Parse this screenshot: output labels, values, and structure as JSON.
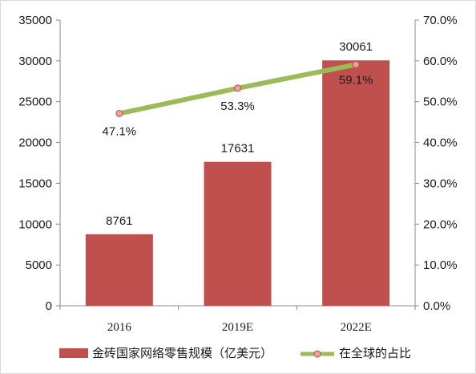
{
  "chart_data": {
    "type": "bar",
    "categories": [
      "2016",
      "2019E",
      "2022E"
    ],
    "series": [
      {
        "name": "金砖国家网络零售规模（亿美元）",
        "type": "bar",
        "axis": "left",
        "values": [
          8761,
          17631,
          30061
        ],
        "labels": [
          "8761",
          "17631",
          "30061"
        ],
        "color": "#c0504d"
      },
      {
        "name": "在全球的占比",
        "type": "line",
        "axis": "right",
        "values": [
          47.1,
          53.3,
          59.1
        ],
        "labels": [
          "47.1%",
          "53.3%",
          "59.1%"
        ],
        "color": "#9bbb59",
        "marker_color": "#e8a0a0"
      }
    ],
    "y_left": {
      "min": 0,
      "max": 35000,
      "ticks": [
        "0",
        "5000",
        "10000",
        "15000",
        "20000",
        "25000",
        "30000",
        "35000"
      ]
    },
    "y_right": {
      "min": 0,
      "max": 70,
      "ticks": [
        "0.0%",
        "10.0%",
        "20.0%",
        "30.0%",
        "40.0%",
        "50.0%",
        "60.0%",
        "70.0%"
      ]
    },
    "grid": false,
    "legend_position": "bottom"
  }
}
